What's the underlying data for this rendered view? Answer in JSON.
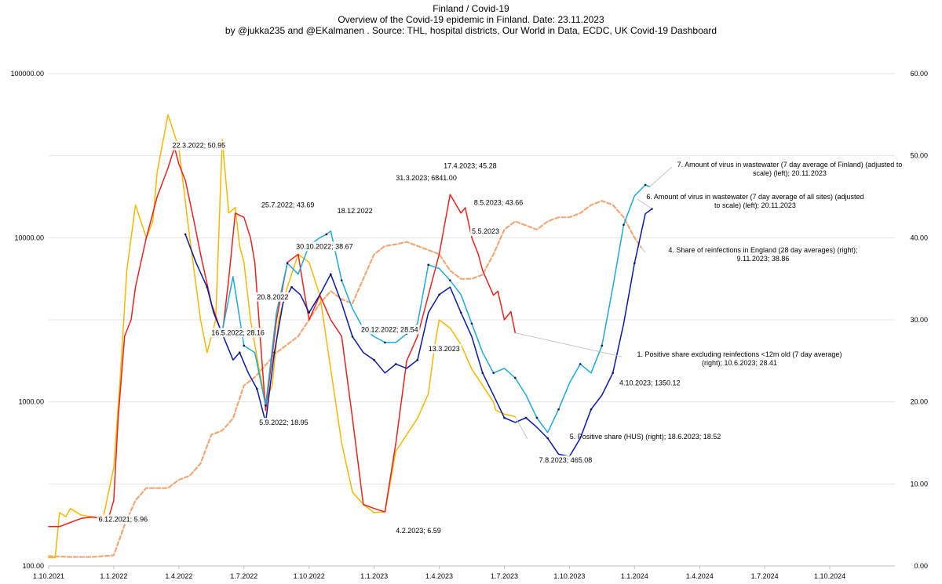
{
  "chart_data": {
    "type": "line",
    "title_lines": [
      "Finland / Covid-19",
      "Overview of the Covid-19 epidemic in Finland. Date: 23.11.2023",
      "by @jukka235 and @EKalmanen . Source: THL, hospital districts, Our World in Data, ECDC, UK Covid-19 Dashboard"
    ],
    "x_tick_labels": [
      "1.10.2021",
      "1.1.2022",
      "1.4.2022",
      "1.7.2022",
      "1.10.2022",
      "1.1.2023",
      "1.4.2023",
      "1.7.2023",
      "1.10.2023",
      "1.1.2024",
      "1.4.2024",
      "1.7.2024",
      "1.10.2024"
    ],
    "x_range_months": [
      0,
      39
    ],
    "y_left": {
      "scale": "log",
      "ylim": [
        100,
        100000
      ],
      "tick_labels": [
        "100.00",
        "1000.00",
        "10000.00",
        "100000.00"
      ]
    },
    "y_right": {
      "scale": "linear",
      "ylim": [
        0,
        60
      ],
      "tick_labels": [
        "0.00",
        "10.00",
        "20.00",
        "30.00",
        "40.00",
        "50.00",
        "60.00"
      ]
    },
    "colors": {
      "positive_share_ex_reinf": "#e8231f",
      "positive_share_hus": "#f5b800",
      "wastewater_finland": "#1fa8d8",
      "wastewater_all_sites": "#0a1aa8",
      "reinfections_england": "#f0a878",
      "grid": "#e3e3e3",
      "leader": "#b8b8b8"
    },
    "series": [
      {
        "id": "positive_share_ex_reinf",
        "name": "1. Positive share excluding reinfections <12m old (7 day average) (right); 10.6.2023; 28.41",
        "axis": "right",
        "style": "solid",
        "x": [
          0,
          0.5,
          1,
          1.5,
          2,
          2.5,
          2.8,
          3,
          3.2,
          3.5,
          3.8,
          4,
          4.5,
          5,
          5.5,
          5.8,
          6,
          6.3,
          6.7,
          7,
          7.5,
          8,
          8.3,
          8.6,
          9,
          9.3,
          9.5,
          9.8,
          10,
          10.5,
          11,
          11.5,
          11.8,
          12,
          12.5,
          13,
          13.5,
          14,
          14.5,
          15,
          15.5,
          16,
          16.5,
          17,
          17.5,
          18,
          18.5,
          19,
          19.2,
          19.5,
          19.8,
          20,
          20.5,
          20.7,
          21,
          21.3,
          21.5,
          22,
          22.5,
          22.9,
          23.3
        ],
        "y": [
          4.8,
          4.8,
          5.3,
          5.8,
          5.96,
          5.8,
          6.2,
          8.0,
          18.0,
          28.0,
          30.0,
          34.0,
          40.0,
          45.0,
          48.5,
          51.0,
          49.0,
          47.0,
          42.0,
          38.0,
          32.0,
          28.16,
          35.0,
          43.0,
          42.5,
          40.0,
          37.0,
          26.0,
          18.95,
          30.0,
          37.0,
          38.0,
          33.0,
          30.0,
          33.0,
          30.0,
          28.0,
          18.0,
          7.5,
          7.0,
          6.59,
          15.0,
          25.0,
          28.0,
          33.0,
          38.0,
          45.28,
          43.0,
          43.66,
          40.0,
          38.0,
          36.0,
          33.0,
          33.5,
          30.0,
          31.0,
          28.41,
          null,
          null,
          null,
          null
        ]
      },
      {
        "id": "positive_share_hus",
        "name": "5. Positive share (HUS) (right); 18.6.2023; 18.52",
        "axis": "right",
        "style": "solid",
        "x": [
          0,
          0.3,
          0.5,
          0.8,
          1,
          1.5,
          2,
          2.5,
          3,
          3.3,
          3.6,
          4,
          4.5,
          4.8,
          5,
          5.5,
          6,
          6.5,
          7,
          7.3,
          7.7,
          8,
          8.3,
          8.6,
          8.8,
          9,
          9.3,
          9.7,
          10,
          10.3,
          10.6,
          11,
          11.5,
          12,
          12.5,
          13,
          13.5,
          14,
          14.5,
          15,
          15.5,
          16,
          16.5,
          17,
          17.5,
          17.8,
          18,
          18.5,
          19,
          19.5,
          20,
          20.5,
          20.6,
          21,
          21.5
        ],
        "y": [
          1.0,
          1.0,
          6.5,
          6.0,
          7.0,
          6.2,
          6.0,
          5.7,
          12.0,
          23.0,
          36.0,
          44.0,
          40.0,
          42.0,
          48.0,
          55.0,
          50.95,
          40.0,
          30.0,
          26.0,
          30.0,
          52.0,
          43.0,
          43.69,
          39.0,
          37.0,
          30.0,
          24.0,
          20.0,
          22.0,
          30.0,
          34.0,
          38.0,
          37.0,
          33.0,
          24.0,
          15.0,
          9.0,
          7.5,
          6.5,
          6.6,
          14.0,
          16.0,
          18.0,
          21.0,
          27.0,
          30.0,
          29.0,
          27.0,
          24.0,
          22.0,
          20.0,
          19.0,
          18.52,
          18.2
        ]
      },
      {
        "id": "wastewater_finland",
        "name": "7. Amount of virus in wastewater (7 day average of Finland) (adjusted to scale) (left); 20.11.2023",
        "axis": "left",
        "style": "solid",
        "markers": true,
        "x": [
          8,
          8.5,
          9,
          9.5,
          10,
          10.5,
          11,
          11.5,
          12,
          12.5,
          12.8,
          13,
          13.5,
          14,
          14.5,
          15,
          15.5,
          16,
          16.5,
          17,
          17.5,
          18,
          18.5,
          19,
          19.5,
          20,
          20.5,
          21,
          21.5,
          22,
          22.5,
          23,
          23.5,
          24,
          24.5,
          25,
          25.5,
          26,
          26.5,
          27,
          27.5,
          27.7
        ],
        "y": [
          2700,
          5800,
          2200,
          2000,
          950,
          3500,
          7000,
          6000,
          9000,
          10000,
          10500,
          11000,
          5500,
          3700,
          2800,
          2500,
          2300,
          2300,
          2600,
          3000,
          6841,
          6500,
          5500,
          4500,
          3000,
          2000,
          1500,
          1600,
          1400,
          1100,
          800,
          650,
          900,
          1300,
          1700,
          1500,
          2200,
          5000,
          12000,
          18000,
          21000,
          20500
        ]
      },
      {
        "id": "wastewater_all_sites",
        "name": "6. Amount of virus in wastewater (7 day average of all sites) (adjusted to scale) (left); 20.11.2023",
        "axis": "left",
        "style": "solid",
        "markers": true,
        "x": [
          6.3,
          6.8,
          7.3,
          7.6,
          8,
          8.5,
          8.8,
          9.2,
          9.6,
          10,
          10.4,
          10.8,
          11.2,
          11.6,
          12,
          12.5,
          13,
          13.5,
          14,
          14.5,
          15,
          15.5,
          16,
          16.5,
          17,
          17.5,
          18,
          18.5,
          19,
          19.5,
          20,
          20.5,
          21,
          21.5,
          22,
          22.5,
          23,
          23.5,
          24,
          24.5,
          25,
          25.5,
          26,
          26.5,
          27,
          27.5,
          27.8
        ],
        "y": [
          10500,
          7000,
          5000,
          3500,
          2600,
          1800,
          2000,
          1500,
          1200,
          750,
          2000,
          4000,
          5000,
          4500,
          3500,
          4500,
          6000,
          4000,
          2500,
          2000,
          1800,
          1500,
          1700,
          1600,
          1800,
          3500,
          4500,
          5000,
          3500,
          2500,
          1500,
          1100,
          800,
          750,
          800,
          700,
          600,
          480,
          465,
          600,
          900,
          1100,
          1500,
          3000,
          7000,
          14000,
          15000
        ]
      },
      {
        "id": "reinfections_england",
        "name": "4. Share of reinfections in England (28 day averages) (right); 9.11.2023; 38.86",
        "axis": "right",
        "style": "dashed",
        "x": [
          0,
          1,
          2,
          3,
          3.5,
          4,
          4.5,
          5,
          5.5,
          6,
          6.5,
          7,
          7.5,
          8,
          8.5,
          9,
          9.5,
          10,
          10.5,
          11,
          11.5,
          12,
          12.5,
          13,
          13.5,
          14,
          14.5,
          15,
          15.5,
          16,
          16.5,
          17,
          17.5,
          18,
          18.5,
          19,
          19.5,
          20,
          20.5,
          21,
          21.5,
          22,
          22.5,
          23,
          23.5,
          24,
          24.5,
          25,
          25.5,
          26,
          26.5,
          27,
          27.3
        ],
        "y": [
          1.2,
          1.1,
          1.1,
          1.3,
          5.0,
          8.0,
          9.5,
          9.5,
          9.5,
          10.5,
          11.0,
          12.5,
          16.0,
          16.5,
          18.0,
          22.0,
          23.0,
          24.5,
          26.0,
          27.0,
          28.0,
          30.0,
          32.0,
          33.5,
          32.5,
          32.0,
          35.0,
          38.0,
          39.0,
          39.2,
          39.5,
          39.0,
          38.5,
          38.0,
          36.0,
          35.0,
          35.0,
          35.5,
          38.0,
          41.0,
          42.0,
          41.5,
          41.0,
          42.0,
          42.5,
          42.5,
          43.0,
          44.0,
          44.5,
          44.0,
          42.5,
          40.0,
          38.86
        ]
      }
    ],
    "annotations": [
      {
        "text": "22.3.2022; 50.95",
        "x": 5.7,
        "axis": "right",
        "y": 50.95
      },
      {
        "text": "25.7.2022; 43.69",
        "x": 9.8,
        "axis": "right",
        "y": 43.69
      },
      {
        "text": "20.8.2022",
        "x": 9.6,
        "axis": "right",
        "y": 32.5
      },
      {
        "text": "16.5.2022; 28.16",
        "x": 7.5,
        "axis": "right",
        "y": 28.16
      },
      {
        "text": "5.9.2022; 18.95",
        "x": 9.7,
        "axis": "right",
        "y": 17.2
      },
      {
        "text": "30.10.2022; 38.67",
        "x": 11.4,
        "axis": "right",
        "y": 38.67
      },
      {
        "text": "18.12.2022",
        "x": 13.3,
        "axis": "right",
        "y": 43.0
      },
      {
        "text": "20.12.2022; 28.54",
        "x": 14.4,
        "axis": "right",
        "y": 28.54
      },
      {
        "text": "4.2.2023; 6.59",
        "x": 16.0,
        "axis": "right",
        "y": 4.0
      },
      {
        "text": "13.3.2023",
        "x": 17.5,
        "axis": "right",
        "y": 26.2
      },
      {
        "text": "31.3.2023; 6841.00",
        "x": 16.0,
        "axis": "right",
        "y": 47.0
      },
      {
        "text": "17.4.2023; 45.28",
        "x": 18.2,
        "axis": "right",
        "y": 48.5
      },
      {
        "text": "8.5.2023; 43.66",
        "x": 19.6,
        "axis": "right",
        "y": 44.0
      },
      {
        "text": "5.5.2023",
        "x": 19.5,
        "axis": "right",
        "y": 40.5
      },
      {
        "text": "7.8.2023; 465.08",
        "x": 22.6,
        "axis": "right",
        "y": 12.6
      },
      {
        "text": "4.10.2023; 1350.12",
        "x": 26.3,
        "axis": "right",
        "y": 22.0
      },
      {
        "text": "6.12.2021; 5.96",
        "x": 2.3,
        "axis": "right",
        "y": 5.4
      }
    ]
  }
}
